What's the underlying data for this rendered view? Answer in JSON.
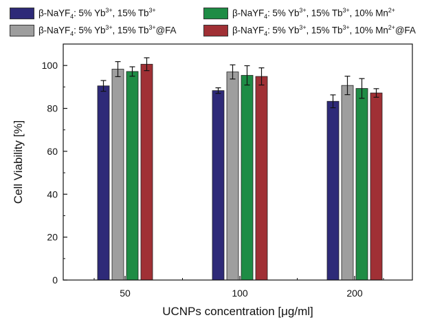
{
  "chart_data": {
    "type": "bar",
    "categories": [
      "50",
      "100",
      "200"
    ],
    "xlabel": "UCNPs concentration [μg/ml]",
    "ylabel": "Cell Viability [%]",
    "ylim": [
      0,
      110
    ],
    "yticks": [
      0,
      20,
      40,
      60,
      80,
      100
    ],
    "grid": false,
    "error_bars": true,
    "legend_position": "top",
    "series": [
      {
        "name": "β-NaYF4: 5% Yb3+, 15% Tb3+",
        "color": "#2e2a78",
        "values": [
          90.5,
          88.3,
          83.3
        ],
        "errors": [
          2.5,
          1.3,
          3.0
        ]
      },
      {
        "name": "β-NaYF4: 5% Yb3+, 15% Tb3+@FA",
        "color": "#9e9e9e",
        "values": [
          98.3,
          97.0,
          90.7
        ],
        "errors": [
          3.5,
          3.3,
          4.3
        ]
      },
      {
        "name": "β-NaYF4: 5% Yb3+, 15% Tb3+, 10% Mn2+",
        "color": "#1e8c45",
        "values": [
          97.2,
          95.4,
          89.3
        ],
        "errors": [
          2.2,
          4.5,
          4.6
        ]
      },
      {
        "name": "β-NaYF4: 5% Yb3+, 15% Tb3+, 10% Mn2+@FA",
        "color": "#a03035",
        "values": [
          100.6,
          94.9,
          87.2
        ],
        "errors": [
          3.0,
          4.0,
          2.0
        ]
      }
    ]
  },
  "legend": {
    "prefix": "β-NaYF",
    "sub": "4",
    "entries": [
      {
        "body": ": 5% Yb",
        "sup1": "3+",
        "mid": ", 15% Tb",
        "sup2": "3+",
        "tail": "",
        "sup3": "",
        "suffix": ""
      },
      {
        "body": ": 5% Yb",
        "sup1": "3+",
        "mid": ", 15% Tb",
        "sup2": "3+",
        "tail": ", 10% Mn",
        "sup3": "2+",
        "suffix": ""
      },
      {
        "body": ": 5% Yb",
        "sup1": "3+",
        "mid": ", 15% Tb",
        "sup2": "3+",
        "tail": "",
        "sup3": "",
        "suffix": "@FA"
      },
      {
        "body": ": 5% Yb",
        "sup1": "3+",
        "mid": ", 15% Tb",
        "sup2": "3+",
        "tail": ", 10% Mn",
        "sup3": "2+",
        "suffix": "@FA"
      }
    ]
  }
}
